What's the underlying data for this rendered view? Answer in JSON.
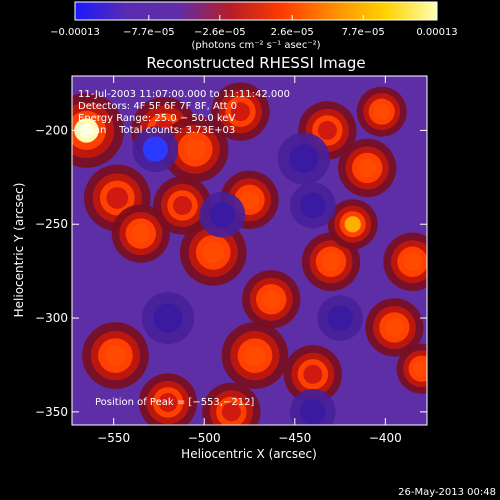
{
  "chart_data": {
    "type": "heatmap",
    "title": "Reconstructed RHESSI Image",
    "xlabel": "Heliocentric X (arcsec)",
    "ylabel": "Heliocentric Y (arcsec)",
    "xlim": [
      -573,
      -377
    ],
    "ylim": [
      -357,
      -171
    ],
    "xticks": [
      -550,
      -500,
      -450,
      -400
    ],
    "xtick_labels": [
      "−550",
      "−500",
      "−450",
      "−400"
    ],
    "yticks": [
      -200,
      -250,
      -300,
      -350
    ],
    "ytick_labels": [
      "−200",
      "−250",
      "−300",
      "−350"
    ],
    "colorbar": {
      "ticks": [
        -0.00013,
        -7.7e-05,
        -2.6e-05,
        2.6e-05,
        7.7e-05,
        0.00013
      ],
      "tick_labels": [
        "−0.00013",
        "−7.7e−05",
        "−2.6e−05",
        "2.6e−05",
        "7.7e−05",
        "0.00013"
      ],
      "unit_label": "(photons cm⁻² s⁻¹ asec⁻²)",
      "colormap": [
        "#1a1aff",
        "#5a2ab0",
        "#5f2ea8",
        "#b41e28",
        "#ff3a00",
        "#ff8c00",
        "#ffd200",
        "#ffffb0"
      ]
    },
    "annotations": [
      "11-Jul-2003 11:07:00.000 to 11:11:42.000",
      "Detectors: 4F 5F 6F 7F 8F, Att 0",
      "Energy Range: 25.0 − 50.0 keV",
      "Clean    Total counts: 3.73E+03"
    ],
    "peak_label": "Position of Peak = [−553,−212]",
    "peak": [
      -553,
      -212
    ],
    "blobs": [
      {
        "x": -565,
        "y": -200,
        "v": 1.0,
        "s": 9
      },
      {
        "x": -548,
        "y": -236,
        "v": 0.45,
        "s": 8
      },
      {
        "x": -549,
        "y": -320,
        "v": 0.55,
        "s": 8
      },
      {
        "x": -535,
        "y": -255,
        "v": 0.5,
        "s": 7
      },
      {
        "x": -522,
        "y": -200,
        "v": 0.45,
        "s": 8
      },
      {
        "x": -505,
        "y": -210,
        "v": 0.55,
        "s": 8
      },
      {
        "x": -512,
        "y": -240,
        "v": 0.45,
        "s": 7
      },
      {
        "x": -495,
        "y": -265,
        "v": 0.5,
        "s": 8
      },
      {
        "x": -480,
        "y": -190,
        "v": 0.45,
        "s": 7
      },
      {
        "x": -475,
        "y": -237,
        "v": 0.5,
        "s": 7
      },
      {
        "x": -463,
        "y": -290,
        "v": 0.5,
        "s": 7
      },
      {
        "x": -472,
        "y": -320,
        "v": 0.55,
        "s": 8
      },
      {
        "x": -430,
        "y": -270,
        "v": 0.5,
        "s": 7
      },
      {
        "x": -418,
        "y": -250,
        "v": 0.75,
        "s": 6
      },
      {
        "x": -410,
        "y": -220,
        "v": 0.55,
        "s": 7
      },
      {
        "x": -402,
        "y": -190,
        "v": 0.5,
        "s": 6
      },
      {
        "x": -385,
        "y": -270,
        "v": 0.5,
        "s": 7
      },
      {
        "x": -395,
        "y": -305,
        "v": 0.55,
        "s": 7
      },
      {
        "x": -380,
        "y": -327,
        "v": 0.55,
        "s": 6
      },
      {
        "x": -520,
        "y": -345,
        "v": 0.45,
        "s": 7
      },
      {
        "x": -485,
        "y": -350,
        "v": 0.45,
        "s": 7
      },
      {
        "x": -440,
        "y": -330,
        "v": 0.45,
        "s": 7
      },
      {
        "x": -432,
        "y": -200,
        "v": 0.4,
        "s": 7
      },
      {
        "x": -520,
        "y": -300,
        "v": -0.35,
        "s": 8
      },
      {
        "x": -527,
        "y": -210,
        "v": -0.6,
        "s": 7
      },
      {
        "x": -445,
        "y": -215,
        "v": -0.3,
        "s": 8
      },
      {
        "x": -440,
        "y": -240,
        "v": -0.35,
        "s": 7
      },
      {
        "x": -490,
        "y": -245,
        "v": -0.3,
        "s": 7
      },
      {
        "x": -425,
        "y": -300,
        "v": -0.3,
        "s": 7
      },
      {
        "x": -440,
        "y": -350,
        "v": -0.35,
        "s": 7
      }
    ]
  },
  "footer": {
    "timestamp": "26-May-2013 00:48"
  }
}
